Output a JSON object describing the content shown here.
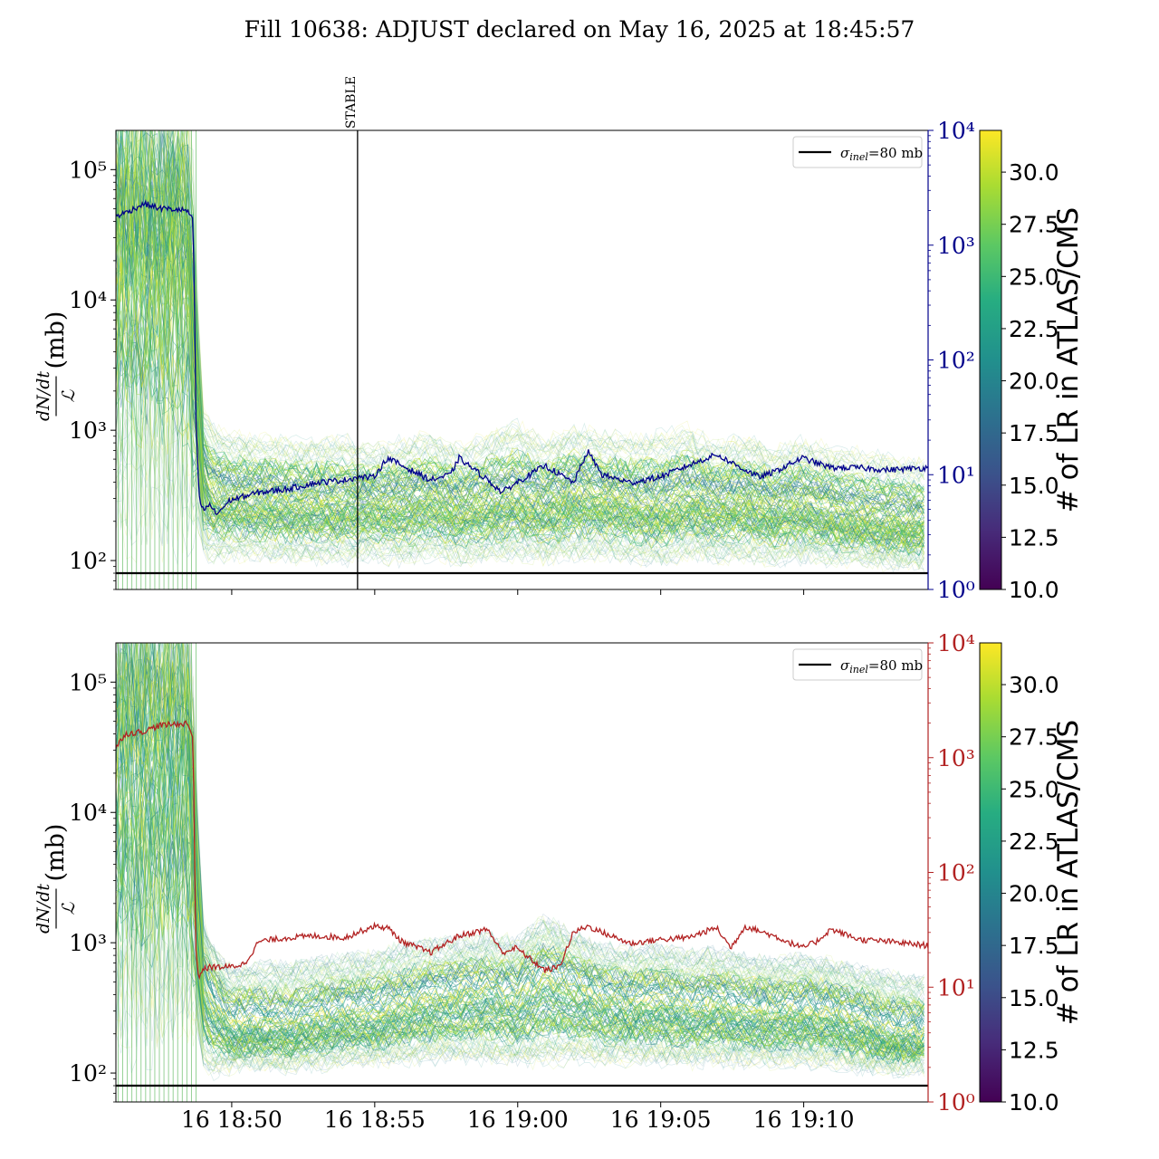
{
  "title": "Fill 10638: ADJUST declared on May 16, 2025 at 18:45:57",
  "shared": {
    "x_tick_labels": [
      "16 18:50",
      "16 18:55",
      "16 19:00",
      "16 19:05",
      "16 19:10"
    ],
    "x_tick_minutes": [
      4.05,
      9.05,
      14.05,
      19.05,
      24.05
    ],
    "x_range_minutes_after_18_45_57": [
      0,
      28.4
    ],
    "ylabel_num": "dN/dt",
    "ylabel_den": "ℒ",
    "ylabel_unit": "(mb)",
    "left_tick_labels": [
      "10²",
      "10³",
      "10⁴",
      "10⁵"
    ],
    "right_tick_labels": [
      "10⁰",
      "10¹",
      "10²",
      "10³",
      "10⁴"
    ],
    "legend_label": "σinel=80 mb",
    "legend_sub": "inel",
    "legend_rest": "=80 mb",
    "colorbar_label": "# of LR in ATLAS/CMS",
    "colorbar_ticks": [
      "10.0",
      "12.5",
      "15.0",
      "17.5",
      "20.0",
      "22.5",
      "25.0",
      "27.5",
      "30.0"
    ],
    "colorbar_range": [
      10,
      32
    ],
    "stable_label": "STABLE",
    "stable_minute": 8.45
  },
  "colors": {
    "top_line": "#00008b",
    "bottom_line": "#b22222",
    "top_right_axis": "#00008b",
    "bottom_right_axis": "#b22222",
    "reference_line": "#000000"
  },
  "chart_data": [
    {
      "type": "line",
      "panel": "top",
      "title": "",
      "xlabel": "",
      "ylabel": "dN/dt / ℒ (mb)",
      "y_scale": "log",
      "ylim": [
        60,
        200000
      ],
      "y2_scale": "log",
      "y2lim": [
        1,
        10000
      ],
      "reference_line": {
        "name": "σinel=80 mb",
        "y": 80
      },
      "marker": {
        "label": "STABLE",
        "x_minute": 8.45
      },
      "secondary_series": {
        "color": "#00008b",
        "x_minutes": [
          0,
          0.3,
          1,
          1.5,
          2.5,
          2.7,
          2.75,
          2.8,
          2.9,
          3.0,
          3.1,
          3.3,
          3.5,
          4.0,
          5.0,
          6.0,
          7.0,
          8.0,
          8.45,
          9.0,
          9.5,
          10.0,
          11.0,
          11.7,
          12.0,
          13.0,
          13.5,
          14.0,
          15.0,
          16.0,
          16.5,
          17.0,
          18.0,
          19.0,
          20.0,
          21.0,
          22.0,
          22.5,
          23.0,
          24.0,
          25.0,
          26.0,
          27.0,
          28.4
        ],
        "y": [
          1800,
          1900,
          2300,
          2100,
          2000,
          1600,
          300,
          30,
          7,
          5,
          5,
          5.5,
          4.5,
          6,
          7,
          7.5,
          8.5,
          9,
          9.5,
          9.5,
          14,
          12,
          9,
          10,
          14,
          9,
          7,
          8.5,
          12,
          8.5,
          16,
          10,
          8.5,
          9.5,
          12,
          15,
          11,
          9.5,
          10.5,
          14,
          11.5,
          11.5,
          11,
          11.5
        ]
      },
      "band_series": {
        "x_minutes": [
          0,
          2.5,
          2.8,
          3.0,
          3.3,
          4,
          5,
          6,
          7,
          8,
          9,
          10,
          11,
          12,
          13,
          14,
          15,
          16,
          17,
          18,
          19,
          20,
          21,
          22,
          23,
          24,
          25,
          26,
          27,
          28.4
        ],
        "center": [
          30000,
          30000,
          2500,
          500,
          300,
          280,
          270,
          260,
          260,
          250,
          260,
          250,
          290,
          240,
          260,
          280,
          250,
          300,
          280,
          260,
          240,
          280,
          250,
          270,
          230,
          250,
          220,
          200,
          190,
          180
        ],
        "low": [
          300,
          300,
          250,
          120,
          100,
          110,
          110,
          105,
          105,
          100,
          110,
          100,
          110,
          100,
          105,
          110,
          105,
          110,
          110,
          105,
          100,
          110,
          105,
          105,
          100,
          105,
          100,
          100,
          95,
          95
        ],
        "high": [
          200000,
          200000,
          20000,
          1600,
          1100,
          900,
          850,
          800,
          800,
          850,
          700,
          800,
          900,
          700,
          900,
          1100,
          800,
          1000,
          900,
          850,
          900,
          1000,
          750,
          850,
          700,
          800,
          700,
          650,
          600,
          550
        ]
      }
    },
    {
      "type": "line",
      "panel": "bottom",
      "title": "",
      "xlabel": "",
      "ylabel": "dN/dt / ℒ (mb)",
      "y_scale": "log",
      "ylim": [
        60,
        200000
      ],
      "y2_scale": "log",
      "y2lim": [
        1,
        10000
      ],
      "reference_line": {
        "name": "σinel=80 mb",
        "y": 80
      },
      "secondary_series": {
        "color": "#b22222",
        "x_minutes": [
          0,
          0.3,
          1,
          1.5,
          2.5,
          2.7,
          2.75,
          2.8,
          2.9,
          3.0,
          3.3,
          4.0,
          4.5,
          5.0,
          6.0,
          7.0,
          8.0,
          9.0,
          9.5,
          10.0,
          11.0,
          12.0,
          13.0,
          13.5,
          14.0,
          15.0,
          15.5,
          16.0,
          16.5,
          17.0,
          18.0,
          19.0,
          20.0,
          21.0,
          21.5,
          22.0,
          23.0,
          24.0,
          24.5,
          25.0,
          26.0,
          27.0,
          28.4
        ],
        "y": [
          1200,
          1600,
          1700,
          1900,
          2000,
          1500,
          150,
          20,
          12,
          14,
          15,
          15,
          16,
          25,
          27,
          28,
          27,
          34,
          33,
          25,
          20,
          28,
          32,
          20,
          22,
          14,
          15,
          30,
          34,
          30,
          24,
          26,
          27,
          33,
          22,
          34,
          28,
          22,
          25,
          32,
          26,
          25,
          23
        ]
      },
      "band_series": {
        "x_minutes": [
          0,
          2.5,
          2.8,
          3.0,
          3.3,
          4,
          5,
          6,
          7,
          8,
          9,
          10,
          11,
          12,
          13,
          14,
          15,
          16,
          17,
          18,
          19,
          20,
          21,
          22,
          23,
          24,
          25,
          26,
          27,
          28.4
        ],
        "center": [
          40000,
          40000,
          3000,
          500,
          350,
          220,
          230,
          220,
          250,
          270,
          280,
          320,
          350,
          380,
          400,
          360,
          500,
          420,
          350,
          330,
          340,
          300,
          320,
          290,
          280,
          290,
          270,
          240,
          200,
          190
        ],
        "low": [
          300,
          300,
          250,
          120,
          100,
          110,
          115,
          110,
          115,
          120,
          120,
          125,
          130,
          130,
          130,
          120,
          120,
          130,
          125,
          125,
          125,
          120,
          125,
          120,
          120,
          120,
          115,
          110,
          105,
          105
        ],
        "high": [
          200000,
          200000,
          20000,
          1600,
          1000,
          600,
          650,
          650,
          700,
          750,
          800,
          900,
          1000,
          1000,
          1100,
          1000,
          1500,
          1100,
          900,
          850,
          900,
          800,
          850,
          750,
          700,
          750,
          700,
          600,
          550,
          500
        ]
      }
    }
  ]
}
